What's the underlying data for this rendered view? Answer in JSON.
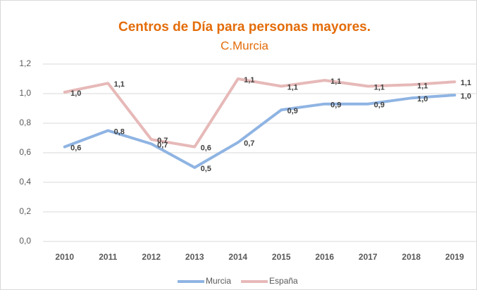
{
  "chart_data": {
    "type": "line",
    "title": "Centros de Día para personas mayores.",
    "subtitle": "C.Murcia",
    "categories": [
      "2010",
      "2011",
      "2012",
      "2013",
      "2014",
      "2015",
      "2016",
      "2017",
      "2018",
      "2019"
    ],
    "series": [
      {
        "name": "Murcia",
        "color": "#8fb4e3",
        "values": [
          0.64,
          0.75,
          0.66,
          0.5,
          0.67,
          0.89,
          0.93,
          0.93,
          0.97,
          0.99
        ],
        "value_labels": [
          "0,6",
          "0,8",
          "0,7",
          "0,5",
          "0,7",
          "0,9",
          "0,9",
          "0,9",
          "1,0",
          "1,0"
        ]
      },
      {
        "name": "España",
        "color": "#e6b9b8",
        "values": [
          1.01,
          1.07,
          0.69,
          0.64,
          1.1,
          1.05,
          1.09,
          1.05,
          1.06,
          1.08
        ],
        "value_labels": [
          "1,0",
          "1,1",
          "0,7",
          "0,6",
          "1,1",
          "1,1",
          "1,1",
          "1,1",
          "1,1",
          "1,1"
        ]
      }
    ],
    "ylim": [
      0,
      1.2
    ],
    "yticks": [
      {
        "value": 0,
        "label": "0,0"
      },
      {
        "value": 0.2,
        "label": "0,2"
      },
      {
        "value": 0.4,
        "label": "0,4"
      },
      {
        "value": 0.6,
        "label": "0,6"
      },
      {
        "value": 0.8,
        "label": "0,8"
      },
      {
        "value": 1.0,
        "label": "1,0"
      },
      {
        "value": 1.2,
        "label": "1,2"
      }
    ],
    "grid": true,
    "legend": "bottom"
  }
}
